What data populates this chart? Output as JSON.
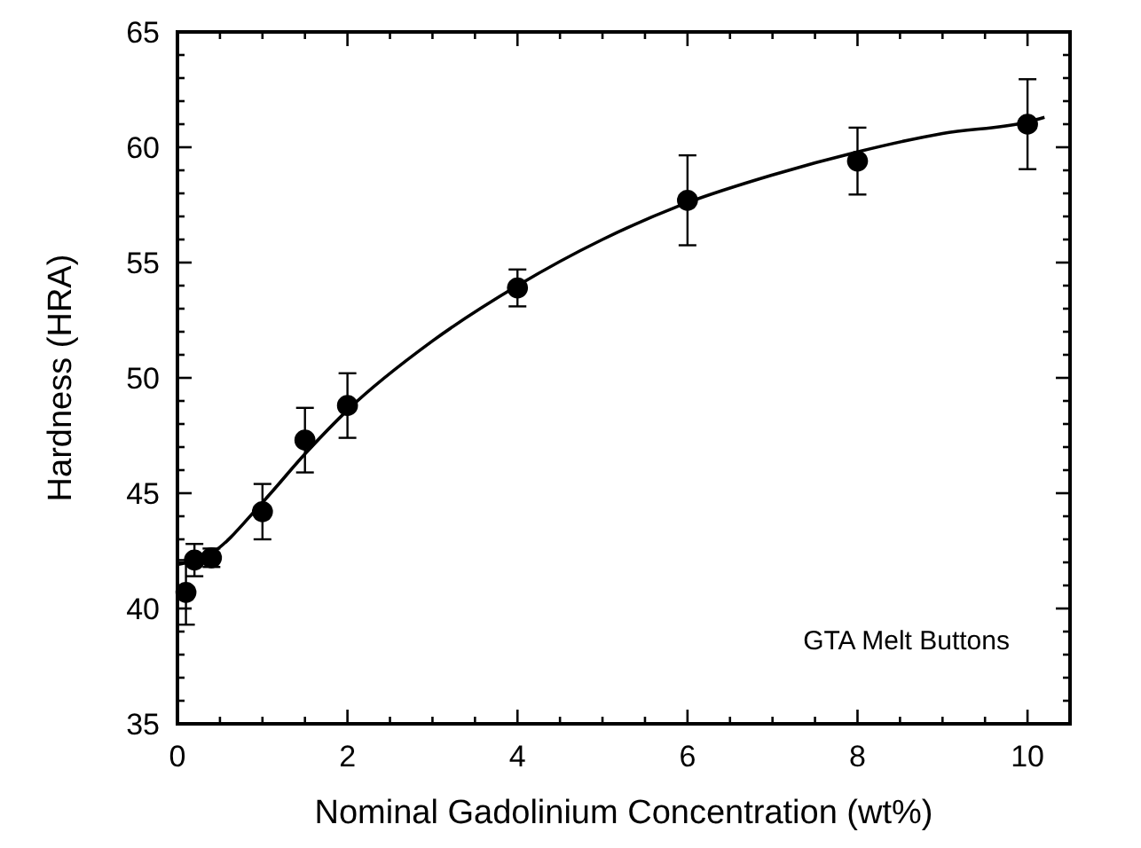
{
  "chart_data": {
    "type": "scatter",
    "xlabel": "Nominal Gadolinium Concentration (wt%)",
    "ylabel": "Hardness (HRA)",
    "xlim": [
      0,
      10.5
    ],
    "ylim": [
      35,
      65
    ],
    "xticks": [
      0,
      {
        "value": 0.5,
        "label": null
      },
      {
        "value": 1,
        "label": null
      },
      {
        "value": 1.5,
        "label": null
      },
      2,
      {
        "value": 2.5,
        "label": null
      },
      {
        "value": 3,
        "label": null
      },
      {
        "value": 3.5,
        "label": null
      },
      4,
      {
        "value": 4.5,
        "label": null
      },
      {
        "value": 5,
        "label": null
      },
      {
        "value": 5.5,
        "label": null
      },
      6,
      {
        "value": 6.5,
        "label": null
      },
      {
        "value": 7,
        "label": null
      },
      {
        "value": 7.5,
        "label": null
      },
      8,
      {
        "value": 8.5,
        "label": null
      },
      {
        "value": 9,
        "label": null
      },
      {
        "value": 9.5,
        "label": null
      },
      10
    ],
    "yticks": [
      35,
      {
        "value": 36,
        "label": null
      },
      {
        "value": 37,
        "label": null
      },
      {
        "value": 38,
        "label": null
      },
      {
        "value": 39,
        "label": null
      },
      40,
      {
        "value": 41,
        "label": null
      },
      {
        "value": 42,
        "label": null
      },
      {
        "value": 43,
        "label": null
      },
      {
        "value": 44,
        "label": null
      },
      45,
      {
        "value": 46,
        "label": null
      },
      {
        "value": 47,
        "label": null
      },
      {
        "value": 48,
        "label": null
      },
      {
        "value": 49,
        "label": null
      },
      50,
      {
        "value": 51,
        "label": null
      },
      {
        "value": 52,
        "label": null
      },
      {
        "value": 53,
        "label": null
      },
      {
        "value": 54,
        "label": null
      },
      55,
      {
        "value": 56,
        "label": null
      },
      {
        "value": 57,
        "label": null
      },
      {
        "value": 58,
        "label": null
      },
      {
        "value": 59,
        "label": null
      },
      60,
      {
        "value": 61,
        "label": null
      },
      {
        "value": 62,
        "label": null
      },
      {
        "value": 63,
        "label": null
      },
      {
        "value": 64,
        "label": null
      },
      65
    ],
    "grid": false,
    "marker": "circle",
    "series": [
      {
        "color": "#000000",
        "x": [
          0.1,
          0.2,
          0.4,
          1,
          1.5,
          2,
          4,
          6,
          8,
          10
        ],
        "values": [
          40.7,
          42.1,
          42.2,
          44.2,
          47.3,
          48.8,
          53.9,
          57.7,
          59.4,
          61.0
        ],
        "errors": [
          1.4,
          0.7,
          0.4,
          1.2,
          1.4,
          1.4,
          0.8,
          1.95,
          1.45,
          1.95
        ]
      },
      {
        "type": "line",
        "color": "#000000",
        "line_style": "solid",
        "marker": "none",
        "x": [
          0,
          0.4,
          1,
          1.5,
          2,
          3,
          4,
          5,
          6,
          7,
          8,
          9,
          10,
          10.2
        ],
        "values": [
          41.9,
          42.4,
          44.6,
          46.7,
          48.6,
          51.6,
          54.0,
          56.0,
          57.6,
          58.8,
          59.8,
          60.6,
          61.1,
          61.3
        ]
      }
    ],
    "annotations": [
      "GTA Melt Buttons"
    ]
  }
}
